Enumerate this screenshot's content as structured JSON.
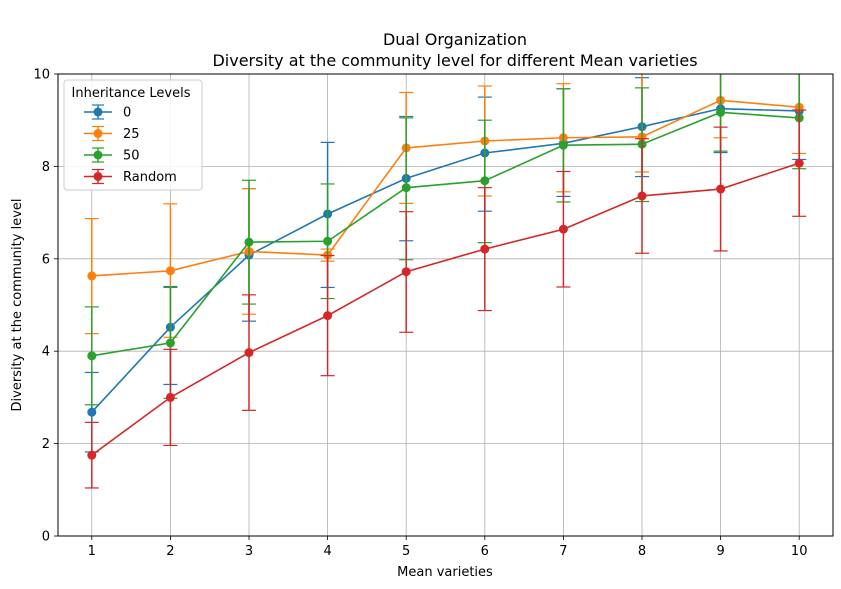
{
  "chart_data": {
    "type": "line",
    "title": "Dual Organization",
    "subtitle": "Diversity at the community level for different Mean varieties",
    "xlabel": "Mean varieties",
    "ylabel": "Diversity at the community level",
    "x": [
      1,
      2,
      3,
      4,
      5,
      6,
      7,
      8,
      9,
      10
    ],
    "xlim": [
      0.57,
      10.43
    ],
    "ylim": [
      0,
      10
    ],
    "x_ticks": [
      "1",
      "2",
      "3",
      "4",
      "5",
      "6",
      "7",
      "8",
      "9",
      "10"
    ],
    "y_ticks": [
      "0",
      "2",
      "4",
      "6",
      "8",
      "10"
    ],
    "grid": true,
    "legend": {
      "title": "Inheritance Levels",
      "placement": "top-left"
    },
    "series": [
      {
        "name": "0",
        "color": "#1f77b4",
        "values": [
          2.68,
          4.52,
          6.08,
          6.97,
          7.74,
          8.29,
          8.5,
          8.86,
          9.25,
          9.2
        ],
        "err_low": [
          1.82,
          3.28,
          4.65,
          5.38,
          6.39,
          7.03,
          7.35,
          7.78,
          8.3,
          8.15
        ],
        "err_high": [
          3.54,
          5.4,
          7.52,
          8.52,
          9.08,
          9.5,
          9.68,
          9.92,
          10.2,
          10.25
        ]
      },
      {
        "name": "25",
        "color": "#ff7f0e",
        "values": [
          5.63,
          5.74,
          6.16,
          6.08,
          8.4,
          8.55,
          8.62,
          8.64,
          9.43,
          9.28
        ],
        "err_low": [
          4.38,
          4.3,
          4.8,
          5.95,
          7.2,
          7.36,
          7.45,
          7.88,
          8.62,
          8.28
        ],
        "err_high": [
          6.87,
          7.19,
          7.52,
          6.21,
          9.6,
          9.74,
          9.79,
          10.15,
          10.3,
          10.28
        ]
      },
      {
        "name": "50",
        "color": "#2ca02c",
        "values": [
          3.9,
          4.18,
          6.36,
          6.38,
          7.54,
          7.69,
          8.46,
          8.48,
          9.17,
          9.05
        ],
        "err_low": [
          2.84,
          2.98,
          5.02,
          5.14,
          5.98,
          6.35,
          7.23,
          7.24,
          8.33,
          7.95
        ],
        "err_high": [
          4.96,
          5.38,
          7.7,
          7.62,
          9.05,
          9.0,
          9.68,
          9.7,
          10.2,
          10.3
        ]
      },
      {
        "name": "Random",
        "color": "#d62728",
        "values": [
          1.75,
          3.0,
          3.97,
          4.77,
          5.72,
          6.21,
          6.64,
          7.36,
          7.51,
          8.07
        ],
        "err_low": [
          1.04,
          1.96,
          2.72,
          3.47,
          4.41,
          4.88,
          5.39,
          6.12,
          6.17,
          6.92
        ],
        "err_high": [
          2.46,
          4.04,
          5.22,
          6.07,
          7.02,
          7.54,
          7.89,
          8.6,
          8.85,
          9.22
        ]
      }
    ]
  }
}
